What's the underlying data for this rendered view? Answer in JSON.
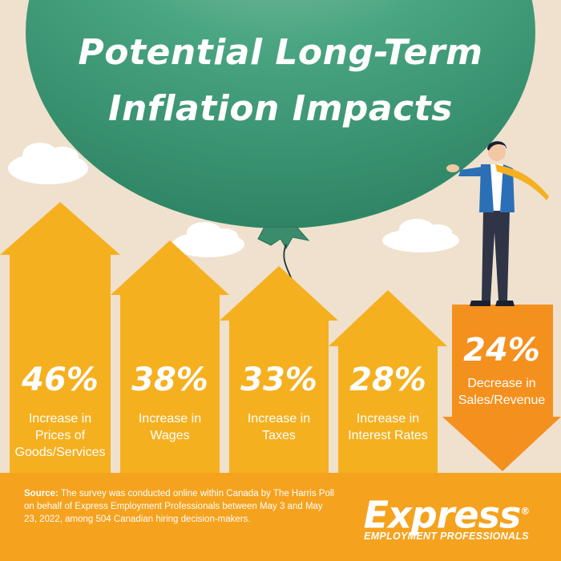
{
  "title": {
    "line1": "Potential Long-Term",
    "line2": "Inflation Impacts"
  },
  "impacts": [
    {
      "percent": "46%",
      "label_line1": "Increase in",
      "label_line2": "Prices of",
      "label_line3": "Goods/Services",
      "direction": "up"
    },
    {
      "percent": "38%",
      "label_line1": "Increase in",
      "label_line2": "Wages",
      "direction": "up"
    },
    {
      "percent": "33%",
      "label_line1": "Increase in",
      "label_line2": "Taxes",
      "direction": "up"
    },
    {
      "percent": "28%",
      "label_line1": "Increase in",
      "label_line2": "Interest Rates",
      "direction": "up"
    },
    {
      "percent": "24%",
      "label_line1": "Decrease in",
      "label_line2": "Sales/Revenue",
      "direction": "down"
    }
  ],
  "source": {
    "label": "Source:",
    "text": "The survey was conducted online within Canada by The Harris Poll on behalf of Express Employment Professionals between May 3 and May 23, 2022, among 504 Canadian hiring decision-makers."
  },
  "logo": {
    "word": "Express",
    "tagline": "EMPLOYMENT PROFESSIONALS",
    "registered": "®"
  },
  "colors": {
    "background": "#efe1cd",
    "balloon": "#3e9a78",
    "up_arrow": "#f5b020",
    "down_arrow": "#f4901e",
    "footer": "#f5a21e",
    "text": "#ffffff"
  }
}
